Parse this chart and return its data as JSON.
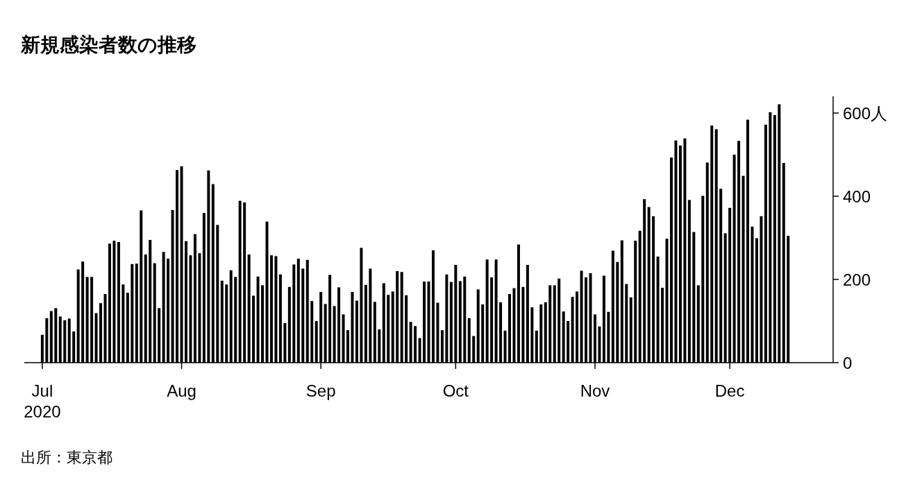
{
  "chart_data": {
    "type": "bar",
    "title": "新規感染者数の推移",
    "x": [
      "2020-07-01",
      "2020-07-02",
      "2020-07-03",
      "2020-07-04",
      "2020-07-05",
      "2020-07-06",
      "2020-07-07",
      "2020-07-08",
      "2020-07-09",
      "2020-07-10",
      "2020-07-11",
      "2020-07-12",
      "2020-07-13",
      "2020-07-14",
      "2020-07-15",
      "2020-07-16",
      "2020-07-17",
      "2020-07-18",
      "2020-07-19",
      "2020-07-20",
      "2020-07-21",
      "2020-07-22",
      "2020-07-23",
      "2020-07-24",
      "2020-07-25",
      "2020-07-26",
      "2020-07-27",
      "2020-07-28",
      "2020-07-29",
      "2020-07-30",
      "2020-07-31",
      "2020-08-01",
      "2020-08-02",
      "2020-08-03",
      "2020-08-04",
      "2020-08-05",
      "2020-08-06",
      "2020-08-07",
      "2020-08-08",
      "2020-08-09",
      "2020-08-10",
      "2020-08-11",
      "2020-08-12",
      "2020-08-13",
      "2020-08-14",
      "2020-08-15",
      "2020-08-16",
      "2020-08-17",
      "2020-08-18",
      "2020-08-19",
      "2020-08-20",
      "2020-08-21",
      "2020-08-22",
      "2020-08-23",
      "2020-08-24",
      "2020-08-25",
      "2020-08-26",
      "2020-08-27",
      "2020-08-28",
      "2020-08-29",
      "2020-08-30",
      "2020-08-31",
      "2020-09-01",
      "2020-09-02",
      "2020-09-03",
      "2020-09-04",
      "2020-09-05",
      "2020-09-06",
      "2020-09-07",
      "2020-09-08",
      "2020-09-09",
      "2020-09-10",
      "2020-09-11",
      "2020-09-12",
      "2020-09-13",
      "2020-09-14",
      "2020-09-15",
      "2020-09-16",
      "2020-09-17",
      "2020-09-18",
      "2020-09-19",
      "2020-09-20",
      "2020-09-21",
      "2020-09-22",
      "2020-09-23",
      "2020-09-24",
      "2020-09-25",
      "2020-09-26",
      "2020-09-27",
      "2020-09-28",
      "2020-09-29",
      "2020-09-30",
      "2020-10-01",
      "2020-10-02",
      "2020-10-03",
      "2020-10-04",
      "2020-10-05",
      "2020-10-06",
      "2020-10-07",
      "2020-10-08",
      "2020-10-09",
      "2020-10-10",
      "2020-10-11",
      "2020-10-12",
      "2020-10-13",
      "2020-10-14",
      "2020-10-15",
      "2020-10-16",
      "2020-10-17",
      "2020-10-18",
      "2020-10-19",
      "2020-10-20",
      "2020-10-21",
      "2020-10-22",
      "2020-10-23",
      "2020-10-24",
      "2020-10-25",
      "2020-10-26",
      "2020-10-27",
      "2020-10-28",
      "2020-10-29",
      "2020-10-30",
      "2020-10-31",
      "2020-11-01",
      "2020-11-02",
      "2020-11-03",
      "2020-11-04",
      "2020-11-05",
      "2020-11-06",
      "2020-11-07",
      "2020-11-08",
      "2020-11-09",
      "2020-11-10",
      "2020-11-11",
      "2020-11-12",
      "2020-11-13",
      "2020-11-14",
      "2020-11-15",
      "2020-11-16",
      "2020-11-17",
      "2020-11-18",
      "2020-11-19",
      "2020-11-20",
      "2020-11-21",
      "2020-11-22",
      "2020-11-23",
      "2020-11-24",
      "2020-11-25",
      "2020-11-26",
      "2020-11-27",
      "2020-11-28",
      "2020-11-29",
      "2020-11-30",
      "2020-12-01",
      "2020-12-02",
      "2020-12-03",
      "2020-12-04",
      "2020-12-05",
      "2020-12-06",
      "2020-12-07",
      "2020-12-08",
      "2020-12-09",
      "2020-12-10",
      "2020-12-11",
      "2020-12-12",
      "2020-12-13",
      "2020-12-14"
    ],
    "values": [
      67,
      107,
      124,
      131,
      111,
      102,
      106,
      75,
      224,
      243,
      206,
      206,
      119,
      143,
      165,
      286,
      293,
      290,
      188,
      168,
      237,
      238,
      366,
      260,
      295,
      239,
      131,
      266,
      250,
      367,
      463,
      472,
      292,
      258,
      309,
      263,
      360,
      462,
      429,
      331,
      197,
      188,
      222,
      206,
      389,
      385,
      260,
      161,
      207,
      186,
      339,
      258,
      256,
      212,
      95,
      182,
      236,
      250,
      226,
      247,
      148,
      100,
      170,
      141,
      211,
      136,
      181,
      116,
      78,
      170,
      149,
      276,
      187,
      226,
      146,
      80,
      191,
      163,
      171,
      220,
      218,
      162,
      98,
      88,
      59,
      195,
      195,
      270,
      144,
      78,
      212,
      194,
      235,
      196,
      207,
      107,
      64,
      176,
      140,
      248,
      205,
      248,
      145,
      77,
      165,
      179,
      284,
      182,
      235,
      133,
      77,
      140,
      145,
      186,
      186,
      202,
      123,
      100,
      158,
      171,
      221,
      205,
      215,
      116,
      87,
      209,
      122,
      269,
      242,
      294,
      189,
      157,
      293,
      317,
      393,
      374,
      352,
      255,
      180,
      298,
      493,
      534,
      522,
      539,
      391,
      314,
      186,
      401,
      481,
      570,
      561,
      418,
      311,
      372,
      500,
      533,
      449,
      584,
      327,
      299,
      352,
      572,
      602,
      595,
      621,
      480,
      305
    ],
    "color": "#000000",
    "xlim": [
      "2020-06-27",
      "2020-12-24"
    ],
    "ylim": [
      0,
      640
    ],
    "xticks": [
      {
        "value": "2020-07-01",
        "label": "Jul\n2020"
      },
      {
        "value": "2020-08-01",
        "label": "Aug"
      },
      {
        "value": "2020-09-01",
        "label": "Sep"
      },
      {
        "value": "2020-10-01",
        "label": "Oct"
      },
      {
        "value": "2020-11-01",
        "label": "Nov"
      },
      {
        "value": "2020-12-01",
        "label": "Dec"
      }
    ],
    "yticks": [
      0,
      200,
      400,
      {
        "value": 600,
        "label": "600人"
      }
    ],
    "annotations": [
      "出所：東京都"
    ]
  }
}
